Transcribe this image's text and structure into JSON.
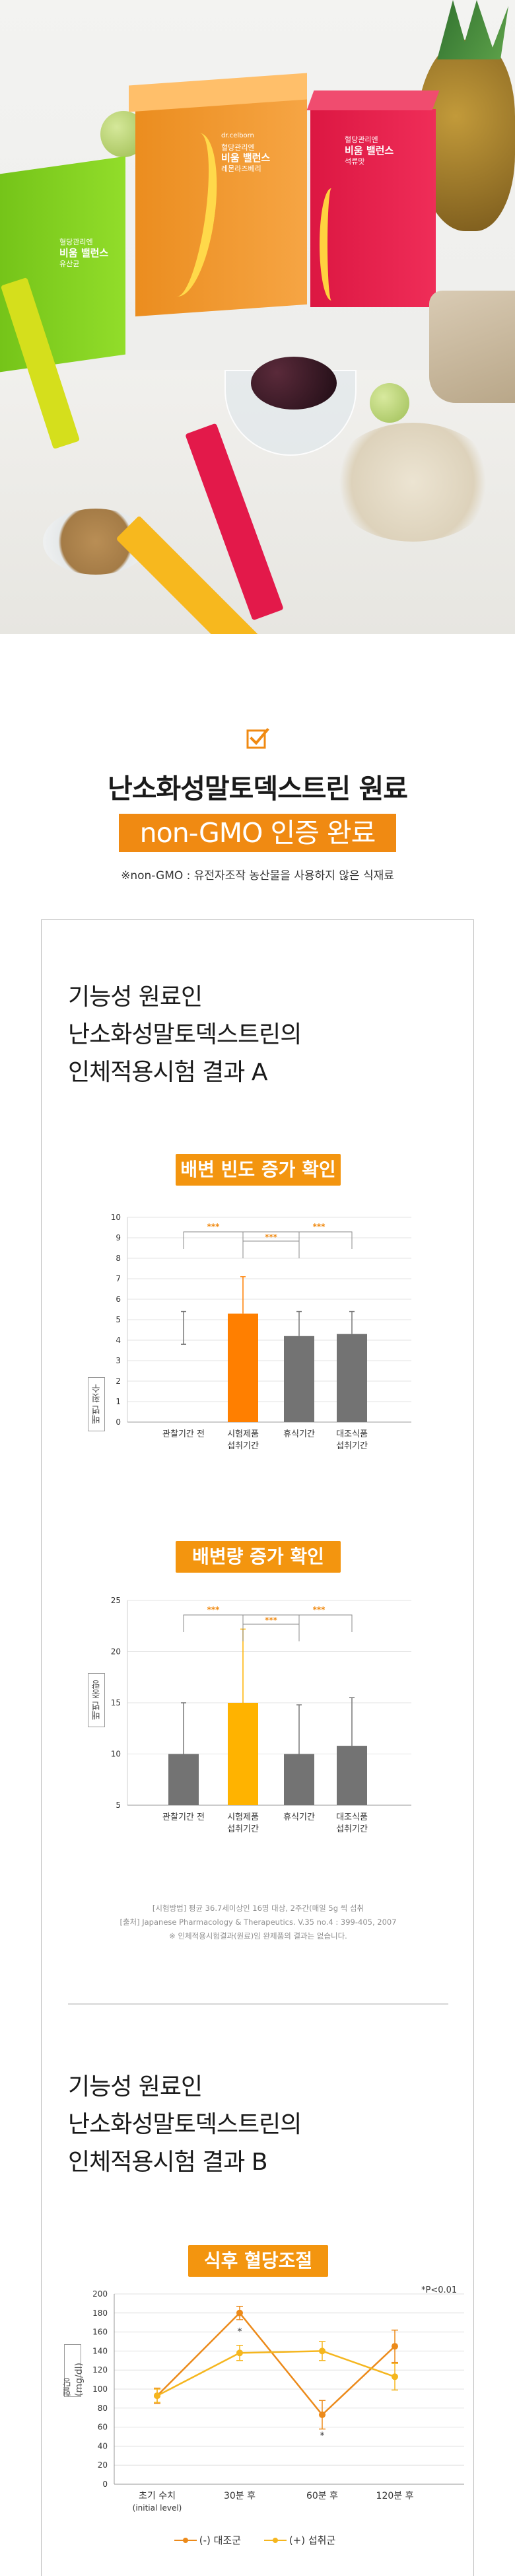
{
  "hero": {
    "brand": "dr.celborn",
    "products": [
      {
        "line1": "혈당관리엔",
        "line2": "비움 밸런스",
        "line3": "유산균",
        "color": "#8bd322"
      },
      {
        "line1": "혈당관리엔",
        "line2": "비움 밸런스",
        "line3": "레몬라즈베리",
        "color": "#f39a2d"
      },
      {
        "line1": "혈당관리엔",
        "line2": "비움 밸런스",
        "line3": "석류맛",
        "color": "#e3194a"
      }
    ]
  },
  "intro": {
    "title_line1": "난소화성말토덱스트린 원료",
    "title_line2": "non-GMO 인증 완료",
    "note": "※non-GMO : 유전자조작 농산물을 사용하지 않은 식재료"
  },
  "section_a": {
    "title_lines": [
      "기능성 원료인",
      "난소화성말토덱스트린의",
      "인체적용시험 결과 A"
    ],
    "chart1_title": "배변 빈도 증가 확인",
    "chart1_ylabel": "배변 횟수",
    "chart2_title": "배변량 증가 확인",
    "chart2_ylabel": "배변 중량",
    "source_lines": [
      "[시험방법] 평균 36.7세이상인 16명 대상, 2주간(매일 5g 씩 섭취",
      "[출처] Japanese Pharmacology & Therapeutics. V.35 no.4 : 399-405, 2007",
      "※ 인체적용시험결과(원료)임 완제품의 결과는 없습니다."
    ]
  },
  "section_b": {
    "title_lines": [
      "기능성 원료인",
      "난소화성말토덱스트린의",
      "인체적용시험 결과 B"
    ],
    "chart_title": "식후 혈당조절",
    "ylabel": "혈당(mg/dl)",
    "p_note": "*P<0.01",
    "legend": [
      "(-) 대조군",
      "(+) 섭취군"
    ]
  },
  "colors": {
    "accent": "#f08a12",
    "bar_orange": "#ff7f00",
    "bar_yellow": "#ffb300",
    "bar_gray": "#737373",
    "line_yellow": "#f5b61e",
    "line_orange": "#ec8a1a"
  },
  "chart_data": [
    {
      "type": "bar",
      "title": "배변 빈도 증가 확인",
      "ylabel": "배변 횟수",
      "xlabel": "",
      "categories": [
        "관찰기간 전",
        "시험제품 섭취기간",
        "휴식기간",
        "대조식품 섭취기간"
      ],
      "x_tick_lines": [
        [
          "관찰기간 전"
        ],
        [
          "시험제품",
          "섭취기간"
        ],
        [
          "휴식기간"
        ],
        [
          "대조식품",
          "섭취기간"
        ]
      ],
      "values": [
        4.6,
        5.3,
        4.2,
        4.3
      ],
      "errors": [
        0.8,
        1.8,
        1.2,
        1.1
      ],
      "bar_visible": [
        false,
        true,
        true,
        true
      ],
      "bar_colors": [
        "#737373",
        "#ff7f00",
        "#737373",
        "#737373"
      ],
      "ylim": [
        0,
        10
      ],
      "yticks": [
        0,
        1,
        2,
        3,
        4,
        5,
        6,
        7,
        8,
        9,
        10
      ],
      "significance": "***"
    },
    {
      "type": "bar",
      "title": "배변량 증가 확인",
      "ylabel": "배변 중량",
      "xlabel": "",
      "categories": [
        "관찰기간 전",
        "시험제품 섭취기간",
        "휴식기간",
        "대조식품 섭취기간"
      ],
      "x_tick_lines": [
        [
          "관찰기간 전"
        ],
        [
          "시험제품",
          "섭취기간"
        ],
        [
          "휴식기간"
        ],
        [
          "대조식품",
          "섭취기간"
        ]
      ],
      "values": [
        10.0,
        15.0,
        10.0,
        10.8
      ],
      "errors": [
        5.0,
        7.2,
        4.8,
        4.7
      ],
      "bar_visible": [
        true,
        true,
        true,
        true
      ],
      "bar_colors": [
        "#737373",
        "#ffb300",
        "#737373",
        "#737373"
      ],
      "ylim": [
        5,
        25
      ],
      "yticks": [
        5,
        10,
        15,
        20,
        25
      ],
      "significance": "***"
    },
    {
      "type": "line",
      "title": "식후 혈당조절",
      "ylabel": "혈당(mg/dl)",
      "xlabel": "",
      "categories": [
        "초기 수치 (initial level)",
        "30분 후",
        "60분 후",
        "120분 후"
      ],
      "x_tick_lines": [
        [
          "초기 수치",
          "(initial level)"
        ],
        [
          "30분 후"
        ],
        [
          "60분 후"
        ],
        [
          "120분 후"
        ]
      ],
      "ylim": [
        0,
        200
      ],
      "yticks": [
        0,
        20,
        40,
        60,
        80,
        100,
        120,
        140,
        160,
        180,
        200
      ],
      "series": [
        {
          "name": "(-) 대조군",
          "values": [
            93,
            180,
            73,
            145
          ],
          "errors": [
            8,
            7,
            15,
            17
          ],
          "color": "#ec8a1a"
        },
        {
          "name": "(+) 섭취군",
          "values": [
            93,
            138,
            140,
            113
          ],
          "errors": [
            7,
            8,
            10,
            14
          ],
          "color": "#f5b61e"
        }
      ],
      "annotations": [
        "*",
        "*"
      ]
    }
  ]
}
